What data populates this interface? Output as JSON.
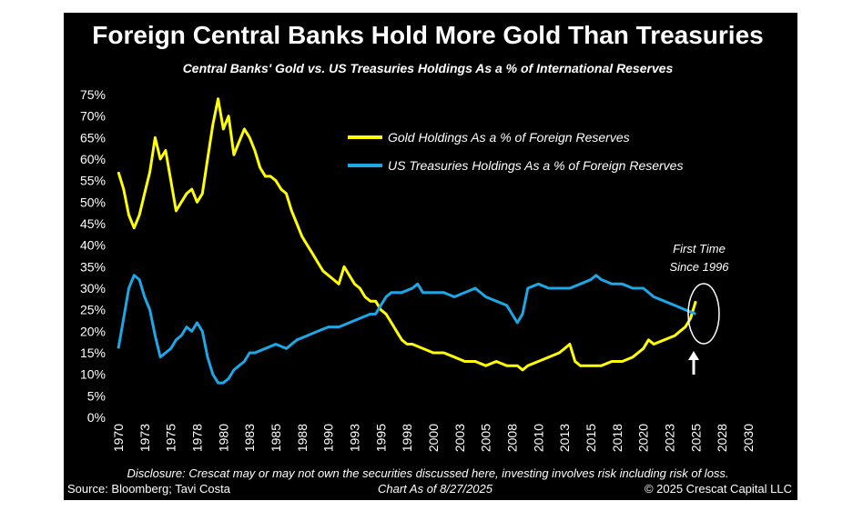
{
  "chart_data": {
    "type": "line",
    "title": "Foreign Central Banks Hold More Gold Than Treasuries",
    "subtitle": "Central Banks' Gold vs. US Treasuries Holdings As a % of International Reserves",
    "xlabel": "",
    "ylabel": "",
    "xlim": [
      1970,
      2030
    ],
    "ylim": [
      0,
      75
    ],
    "y_ticks": [
      "0%",
      "5%",
      "10%",
      "15%",
      "20%",
      "25%",
      "30%",
      "35%",
      "40%",
      "45%",
      "50%",
      "55%",
      "60%",
      "65%",
      "70%",
      "75%"
    ],
    "x_ticks": [
      "1970",
      "1973",
      "1975",
      "1978",
      "1980",
      "1983",
      "1985",
      "1988",
      "1990",
      "1993",
      "1995",
      "1998",
      "2000",
      "2003",
      "2005",
      "2008",
      "2010",
      "2013",
      "2015",
      "2018",
      "2020",
      "2023",
      "2025",
      "2028",
      "2030"
    ],
    "grid": false,
    "legend_position": "top-right",
    "series": [
      {
        "name": "Gold Holdings As a % of Foreign Reserves",
        "color": "#ffff00",
        "x": [
          1970,
          1970.5,
          1971,
          1971.5,
          1972,
          1972.5,
          1973,
          1973.5,
          1974,
          1974.5,
          1975,
          1975.5,
          1976,
          1976.5,
          1977,
          1977.5,
          1978,
          1978.5,
          1979,
          1979.5,
          1980,
          1980.5,
          1981,
          1981.5,
          1982,
          1982.5,
          1983,
          1983.5,
          1984,
          1984.5,
          1985,
          1985.5,
          1986,
          1986.5,
          1987,
          1987.5,
          1988,
          1988.5,
          1989,
          1989.5,
          1990,
          1990.5,
          1991,
          1991.5,
          1992,
          1992.5,
          1993,
          1993.5,
          1994,
          1994.5,
          1995,
          1995.5,
          1996,
          1996.5,
          1997,
          1997.5,
          1998,
          1999,
          2000,
          2001,
          2002,
          2003,
          2004,
          2005,
          2006,
          2007,
          2008,
          2008.5,
          2009,
          2010,
          2011,
          2012,
          2012.5,
          2013,
          2013.5,
          2014,
          2015,
          2016,
          2017,
          2018,
          2019,
          2020,
          2020.5,
          2021,
          2022,
          2023,
          2023.5,
          2024,
          2024.5,
          2025
        ],
        "y": [
          57,
          53,
          47,
          44,
          47,
          52,
          57,
          65,
          60,
          62,
          55,
          48,
          50,
          52,
          53,
          50,
          52,
          60,
          68,
          74,
          67,
          70,
          61,
          64,
          67,
          65,
          62,
          58,
          56,
          56,
          55,
          53,
          52,
          48,
          45,
          42,
          40,
          38,
          36,
          34,
          33,
          32,
          31,
          35,
          33,
          31,
          30,
          28,
          27,
          27,
          25,
          24,
          22,
          20,
          18,
          17,
          17,
          16,
          15,
          15,
          14,
          13,
          13,
          12,
          13,
          12,
          12,
          11,
          12,
          13,
          14,
          15,
          16,
          17,
          13,
          12,
          12,
          12,
          13,
          13,
          14,
          16,
          18,
          17,
          18,
          19,
          20,
          21,
          23,
          27
        ]
      },
      {
        "name": "US Treasuries Holdings As a % of Foreign Reserves",
        "color": "#1ea7e6",
        "x": [
          1970,
          1970.5,
          1971,
          1971.5,
          1972,
          1972.5,
          1973,
          1973.5,
          1974,
          1974.5,
          1975,
          1975.5,
          1976,
          1976.5,
          1977,
          1977.5,
          1978,
          1978.5,
          1979,
          1979.5,
          1980,
          1980.5,
          1981,
          1981.5,
          1982,
          1982.5,
          1983,
          1984,
          1985,
          1986,
          1987,
          1988,
          1989,
          1990,
          1991,
          1992,
          1993,
          1994,
          1994.5,
          1995,
          1995.5,
          1996,
          1997,
          1998,
          1998.5,
          1999,
          2000,
          2001,
          2002,
          2003,
          2004,
          2005,
          2006,
          2007,
          2007.5,
          2008,
          2008.5,
          2009,
          2010,
          2011,
          2012,
          2013,
          2014,
          2015,
          2015.5,
          2016,
          2017,
          2018,
          2019,
          2020,
          2021,
          2022,
          2023,
          2024,
          2025
        ],
        "y": [
          16,
          23,
          30,
          33,
          32,
          28,
          25,
          19,
          14,
          15,
          16,
          18,
          19,
          21,
          20,
          22,
          20,
          14,
          10,
          8,
          8,
          9,
          11,
          12,
          13,
          15,
          15,
          16,
          17,
          16,
          18,
          19,
          20,
          21,
          21,
          22,
          23,
          24,
          24,
          26,
          28,
          29,
          29,
          30,
          31,
          29,
          29,
          29,
          28,
          29,
          30,
          28,
          27,
          26,
          24,
          22,
          24,
          30,
          31,
          30,
          30,
          30,
          31,
          32,
          33,
          32,
          31,
          31,
          30,
          30,
          28,
          27,
          26,
          25,
          24
        ]
      }
    ]
  },
  "legend": {
    "gold_label": "Gold Holdings As a % of Foreign Reserves",
    "treasuries_label": "US Treasuries Holdings As a % of Foreign Reserves"
  },
  "annotation": {
    "line1": "First Time",
    "line2": "Since 1996",
    "arrow_icon": "up-arrow-icon"
  },
  "footer": {
    "disclosure": "Disclosure: Crescat may or may not own the securities discussed here, investing involves risk including risk of loss.",
    "source": "Source: Bloomberg; Tavi Costa",
    "chart_date": "Chart As of 8/27/2025",
    "copyright": "© 2025 Crescat Capital LLC"
  },
  "colors": {
    "background": "#000000",
    "gold": "#ffff00",
    "treasuries": "#1ea7e6",
    "text": "#ffffff"
  }
}
